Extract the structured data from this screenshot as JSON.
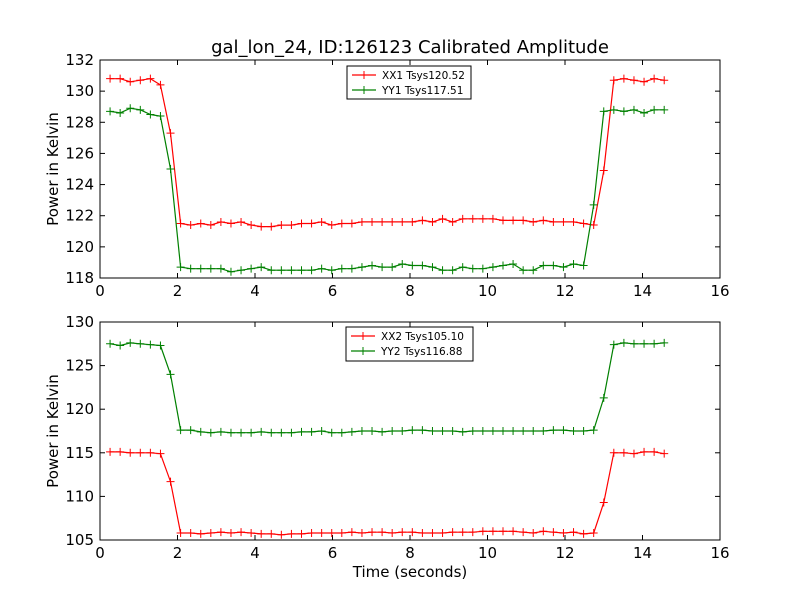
{
  "figure": {
    "title": "gal_lon_24, ID:126123 Calibrated Amplitude"
  },
  "chart_data": [
    {
      "type": "line",
      "title": "gal_lon_24, ID:126123 Calibrated Amplitude",
      "xlabel": "",
      "ylabel": "Power in Kelvin",
      "xlim": [
        0,
        16
      ],
      "ylim": [
        118,
        132
      ],
      "xticks": [
        0,
        2,
        4,
        6,
        8,
        10,
        12,
        14,
        16
      ],
      "yticks": [
        118,
        120,
        122,
        124,
        126,
        128,
        130,
        132
      ],
      "legend_position": "top-center",
      "grid": false,
      "x": [
        0.26,
        0.52,
        0.78,
        1.04,
        1.3,
        1.56,
        1.82,
        2.08,
        2.34,
        2.6,
        2.86,
        3.12,
        3.38,
        3.64,
        3.9,
        4.16,
        4.42,
        4.68,
        4.94,
        5.2,
        5.46,
        5.72,
        5.98,
        6.24,
        6.5,
        6.76,
        7.02,
        7.28,
        7.54,
        7.8,
        8.06,
        8.32,
        8.58,
        8.84,
        9.1,
        9.36,
        9.62,
        9.88,
        10.14,
        10.4,
        10.66,
        10.92,
        11.18,
        11.44,
        11.7,
        11.96,
        12.22,
        12.48,
        12.74,
        13.0,
        13.26,
        13.52,
        13.78,
        14.04,
        14.3,
        14.56
      ],
      "series": [
        {
          "name": "XX1 Tsys120.52",
          "color": "#ff0000",
          "values": [
            130.8,
            130.8,
            130.6,
            130.7,
            130.8,
            130.4,
            127.3,
            121.5,
            121.4,
            121.5,
            121.4,
            121.6,
            121.5,
            121.6,
            121.4,
            121.3,
            121.3,
            121.4,
            121.4,
            121.5,
            121.5,
            121.6,
            121.4,
            121.5,
            121.5,
            121.6,
            121.6,
            121.6,
            121.6,
            121.6,
            121.6,
            121.7,
            121.6,
            121.8,
            121.6,
            121.8,
            121.8,
            121.8,
            121.8,
            121.7,
            121.7,
            121.7,
            121.6,
            121.7,
            121.6,
            121.6,
            121.6,
            121.5,
            121.4,
            124.9,
            130.7,
            130.8,
            130.7,
            130.6,
            130.8,
            130.7
          ]
        },
        {
          "name": "YY1 Tsys117.51",
          "color": "#008000",
          "values": [
            128.7,
            128.6,
            128.9,
            128.8,
            128.5,
            128.4,
            125.0,
            118.7,
            118.6,
            118.6,
            118.6,
            118.6,
            118.4,
            118.5,
            118.6,
            118.7,
            118.5,
            118.5,
            118.5,
            118.5,
            118.5,
            118.6,
            118.5,
            118.6,
            118.6,
            118.7,
            118.8,
            118.7,
            118.7,
            118.9,
            118.8,
            118.8,
            118.7,
            118.5,
            118.5,
            118.7,
            118.6,
            118.6,
            118.7,
            118.8,
            118.9,
            118.5,
            118.5,
            118.8,
            118.8,
            118.7,
            118.9,
            118.8,
            122.7,
            128.7,
            128.8,
            128.7,
            128.8,
            128.6,
            128.8,
            128.8
          ]
        }
      ]
    },
    {
      "type": "line",
      "title": "",
      "xlabel": "Time (seconds)",
      "ylabel": "Power in Kelvin",
      "xlim": [
        0,
        16
      ],
      "ylim": [
        105,
        130
      ],
      "xticks": [
        0,
        2,
        4,
        6,
        8,
        10,
        12,
        14,
        16
      ],
      "yticks": [
        105,
        110,
        115,
        120,
        125,
        130
      ],
      "legend_position": "top-center",
      "grid": false,
      "x": [
        0.26,
        0.52,
        0.78,
        1.04,
        1.3,
        1.56,
        1.82,
        2.08,
        2.34,
        2.6,
        2.86,
        3.12,
        3.38,
        3.64,
        3.9,
        4.16,
        4.42,
        4.68,
        4.94,
        5.2,
        5.46,
        5.72,
        5.98,
        6.24,
        6.5,
        6.76,
        7.02,
        7.28,
        7.54,
        7.8,
        8.06,
        8.32,
        8.58,
        8.84,
        9.1,
        9.36,
        9.62,
        9.88,
        10.14,
        10.4,
        10.66,
        10.92,
        11.18,
        11.44,
        11.7,
        11.96,
        12.22,
        12.48,
        12.74,
        13.0,
        13.26,
        13.52,
        13.78,
        14.04,
        14.3,
        14.56
      ],
      "series": [
        {
          "name": "XX2 Tsys105.10",
          "color": "#ff0000",
          "values": [
            115.1,
            115.1,
            115.0,
            115.0,
            115.0,
            114.9,
            111.7,
            105.8,
            105.8,
            105.7,
            105.8,
            105.9,
            105.8,
            105.9,
            105.8,
            105.7,
            105.7,
            105.6,
            105.7,
            105.7,
            105.8,
            105.8,
            105.8,
            105.8,
            105.9,
            105.8,
            105.9,
            105.9,
            105.8,
            105.9,
            105.9,
            105.8,
            105.8,
            105.8,
            105.9,
            105.9,
            105.9,
            106.0,
            106.0,
            106.0,
            106.0,
            105.9,
            105.8,
            106.0,
            105.9,
            105.8,
            105.9,
            105.7,
            105.8,
            109.3,
            115.0,
            115.0,
            114.9,
            115.1,
            115.1,
            114.9
          ]
        },
        {
          "name": "YY2 Tsys116.88",
          "color": "#008000",
          "values": [
            127.5,
            127.3,
            127.6,
            127.5,
            127.4,
            127.3,
            124.0,
            117.6,
            117.6,
            117.4,
            117.3,
            117.4,
            117.3,
            117.3,
            117.3,
            117.4,
            117.3,
            117.3,
            117.3,
            117.4,
            117.4,
            117.5,
            117.3,
            117.3,
            117.4,
            117.5,
            117.5,
            117.4,
            117.5,
            117.5,
            117.6,
            117.6,
            117.5,
            117.5,
            117.5,
            117.4,
            117.5,
            117.5,
            117.5,
            117.5,
            117.5,
            117.5,
            117.5,
            117.5,
            117.6,
            117.6,
            117.5,
            117.5,
            117.6,
            121.3,
            127.4,
            127.6,
            127.5,
            127.5,
            127.5,
            127.6
          ]
        }
      ]
    }
  ]
}
